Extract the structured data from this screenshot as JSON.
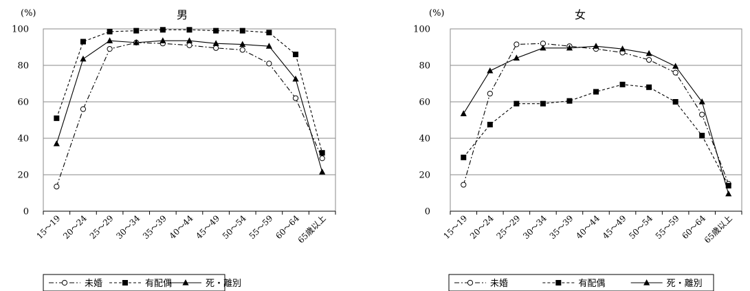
{
  "chart_data": [
    {
      "type": "line",
      "title": "男",
      "ylabel": "(%)",
      "ylim": [
        0,
        100
      ],
      "yticks": [
        0,
        20,
        40,
        60,
        80,
        100
      ],
      "grid": true,
      "legend_position": "bottom",
      "categories": [
        "15～19",
        "20～24",
        "25～29",
        "30～34",
        "35～39",
        "40～44",
        "45～49",
        "50～54",
        "55～59",
        "60～64",
        "65歳以上"
      ],
      "series": [
        {
          "name": "未婚",
          "marker": "open-circle",
          "line": "dash-dot",
          "values": [
            13.5,
            56,
            89,
            92.5,
            92,
            91,
            89.5,
            88.5,
            81,
            62,
            29
          ]
        },
        {
          "name": "有配偶",
          "marker": "filled-square",
          "line": "dashed",
          "values": [
            51,
            93,
            98.5,
            99,
            99.5,
            99.5,
            99,
            99,
            98,
            86,
            32
          ]
        },
        {
          "name": "死・離別",
          "marker": "filled-triangle",
          "line": "solid",
          "values": [
            37,
            83.5,
            93.5,
            92.5,
            93.5,
            93.5,
            92,
            91.5,
            90.5,
            72.5,
            21.5
          ]
        }
      ]
    },
    {
      "type": "line",
      "title": "女",
      "ylabel": "(%)",
      "ylim": [
        0,
        100
      ],
      "yticks": [
        0,
        20,
        40,
        60,
        80,
        100
      ],
      "grid": true,
      "legend_position": "bottom",
      "categories": [
        "15～19",
        "20～24",
        "25～29",
        "30～34",
        "35～39",
        "40～44",
        "45～49",
        "50～54",
        "55～59",
        "60～64",
        "65歳以上"
      ],
      "series": [
        {
          "name": "未婚",
          "marker": "open-circle",
          "line": "dash-dot",
          "values": [
            14.5,
            64.5,
            91.5,
            92,
            90.5,
            89,
            87,
            83,
            76,
            53,
            15
          ]
        },
        {
          "name": "有配偶",
          "marker": "filled-square",
          "line": "dashed",
          "values": [
            29.5,
            47.5,
            59,
            59,
            60.5,
            65.5,
            69.5,
            68,
            60,
            41.5,
            14
          ]
        },
        {
          "name": "死・離別",
          "marker": "filled-triangle",
          "line": "solid",
          "values": [
            53.5,
            77,
            84,
            89.5,
            89.5,
            90.5,
            89,
            86.5,
            79.5,
            60,
            9.5
          ]
        }
      ]
    }
  ]
}
